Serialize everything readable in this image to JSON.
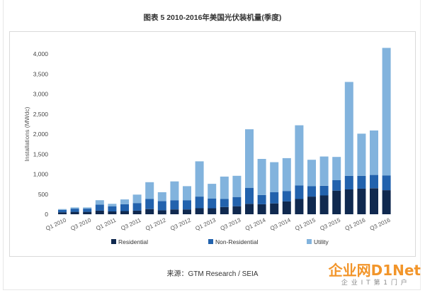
{
  "title": "图表 5 2010-2016年美国光伏装机量(季度)",
  "source": "来源：GTM Research / SEIA",
  "watermark": {
    "brand": "企业网D1Net",
    "tagline": "企 业 I T 第 1 门 户"
  },
  "chart_data": {
    "type": "bar",
    "stacked": true,
    "ylabel": "Installations (MWdc)",
    "xlabel": "",
    "ylim": [
      0,
      4000
    ],
    "grid": false,
    "legend_position": "bottom",
    "yticks": [
      {
        "value": 0,
        "label": "0"
      },
      {
        "value": 500,
        "label": "500"
      },
      {
        "value": 1000,
        "label": "1,000"
      },
      {
        "value": 1500,
        "label": "1,500"
      },
      {
        "value": 2000,
        "label": "2,000"
      },
      {
        "value": 2500,
        "label": "2,500"
      },
      {
        "value": 3000,
        "label": "3,000"
      },
      {
        "value": 3500,
        "label": "3,500"
      },
      {
        "value": 4000,
        "label": "4,000"
      }
    ],
    "categories": [
      "Q1 2010",
      "",
      "Q3 2010",
      "",
      "Q1 2011",
      "",
      "Q3 2011",
      "",
      "Q1 2012",
      "",
      "Q3 2012",
      "",
      "Q1 2013",
      "",
      "Q3 2013",
      "",
      "Q1 2014",
      "",
      "Q3 2014",
      "",
      "Q1 2015",
      "",
      "Q3 2015",
      "",
      "Q1 2016",
      "",
      "Q3 2016"
    ],
    "series": [
      {
        "name": "Residential",
        "color": "#10294f",
        "values": [
          50,
          60,
          60,
          90,
          70,
          80,
          90,
          130,
          100,
          120,
          120,
          150,
          150,
          180,
          200,
          260,
          250,
          270,
          320,
          380,
          440,
          470,
          590,
          620,
          640,
          650,
          600
        ]
      },
      {
        "name": "Non-Residential",
        "color": "#2262ad",
        "values": [
          60,
          80,
          80,
          150,
          130,
          170,
          190,
          250,
          230,
          230,
          230,
          290,
          240,
          200,
          230,
          400,
          230,
          280,
          260,
          340,
          260,
          240,
          260,
          340,
          320,
          330,
          370
        ]
      },
      {
        "name": "Utility",
        "color": "#82b3dd",
        "values": [
          20,
          30,
          30,
          110,
          60,
          120,
          210,
          420,
          220,
          470,
          350,
          880,
          370,
          560,
          530,
          1460,
          900,
          750,
          820,
          1500,
          660,
          730,
          580,
          2340,
          1050,
          1110,
          3180
        ]
      }
    ]
  }
}
